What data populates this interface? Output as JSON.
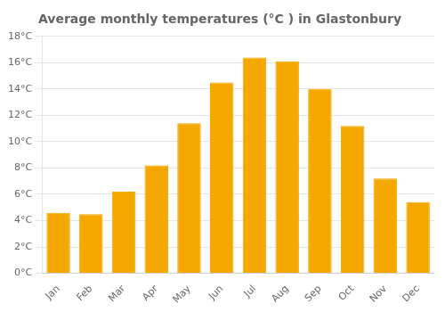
{
  "chart_data": {
    "type": "bar",
    "title": "Average monthly temperatures (°C ) in Glastonbury",
    "categories": [
      "Jan",
      "Feb",
      "Mar",
      "Apr",
      "May",
      "Jun",
      "Jul",
      "Aug",
      "Sep",
      "Oct",
      "Nov",
      "Dec"
    ],
    "values": [
      4.6,
      4.5,
      6.2,
      8.2,
      11.4,
      14.5,
      16.4,
      16.1,
      14.0,
      11.2,
      7.2,
      5.4
    ],
    "color": "#F5A800",
    "ylim": [
      0,
      18
    ],
    "yticks": [
      {
        "value": 0,
        "label": "0°C"
      },
      {
        "value": 2,
        "label": "2°C"
      },
      {
        "value": 4,
        "label": "4°C"
      },
      {
        "value": 6,
        "label": "6°C"
      },
      {
        "value": 8,
        "label": "8°C"
      },
      {
        "value": 10,
        "label": "10°C"
      },
      {
        "value": 12,
        "label": "12°C"
      },
      {
        "value": 14,
        "label": "14°C"
      },
      {
        "value": 16,
        "label": "16°C"
      },
      {
        "value": 18,
        "label": "18°C"
      }
    ],
    "grid": true
  }
}
